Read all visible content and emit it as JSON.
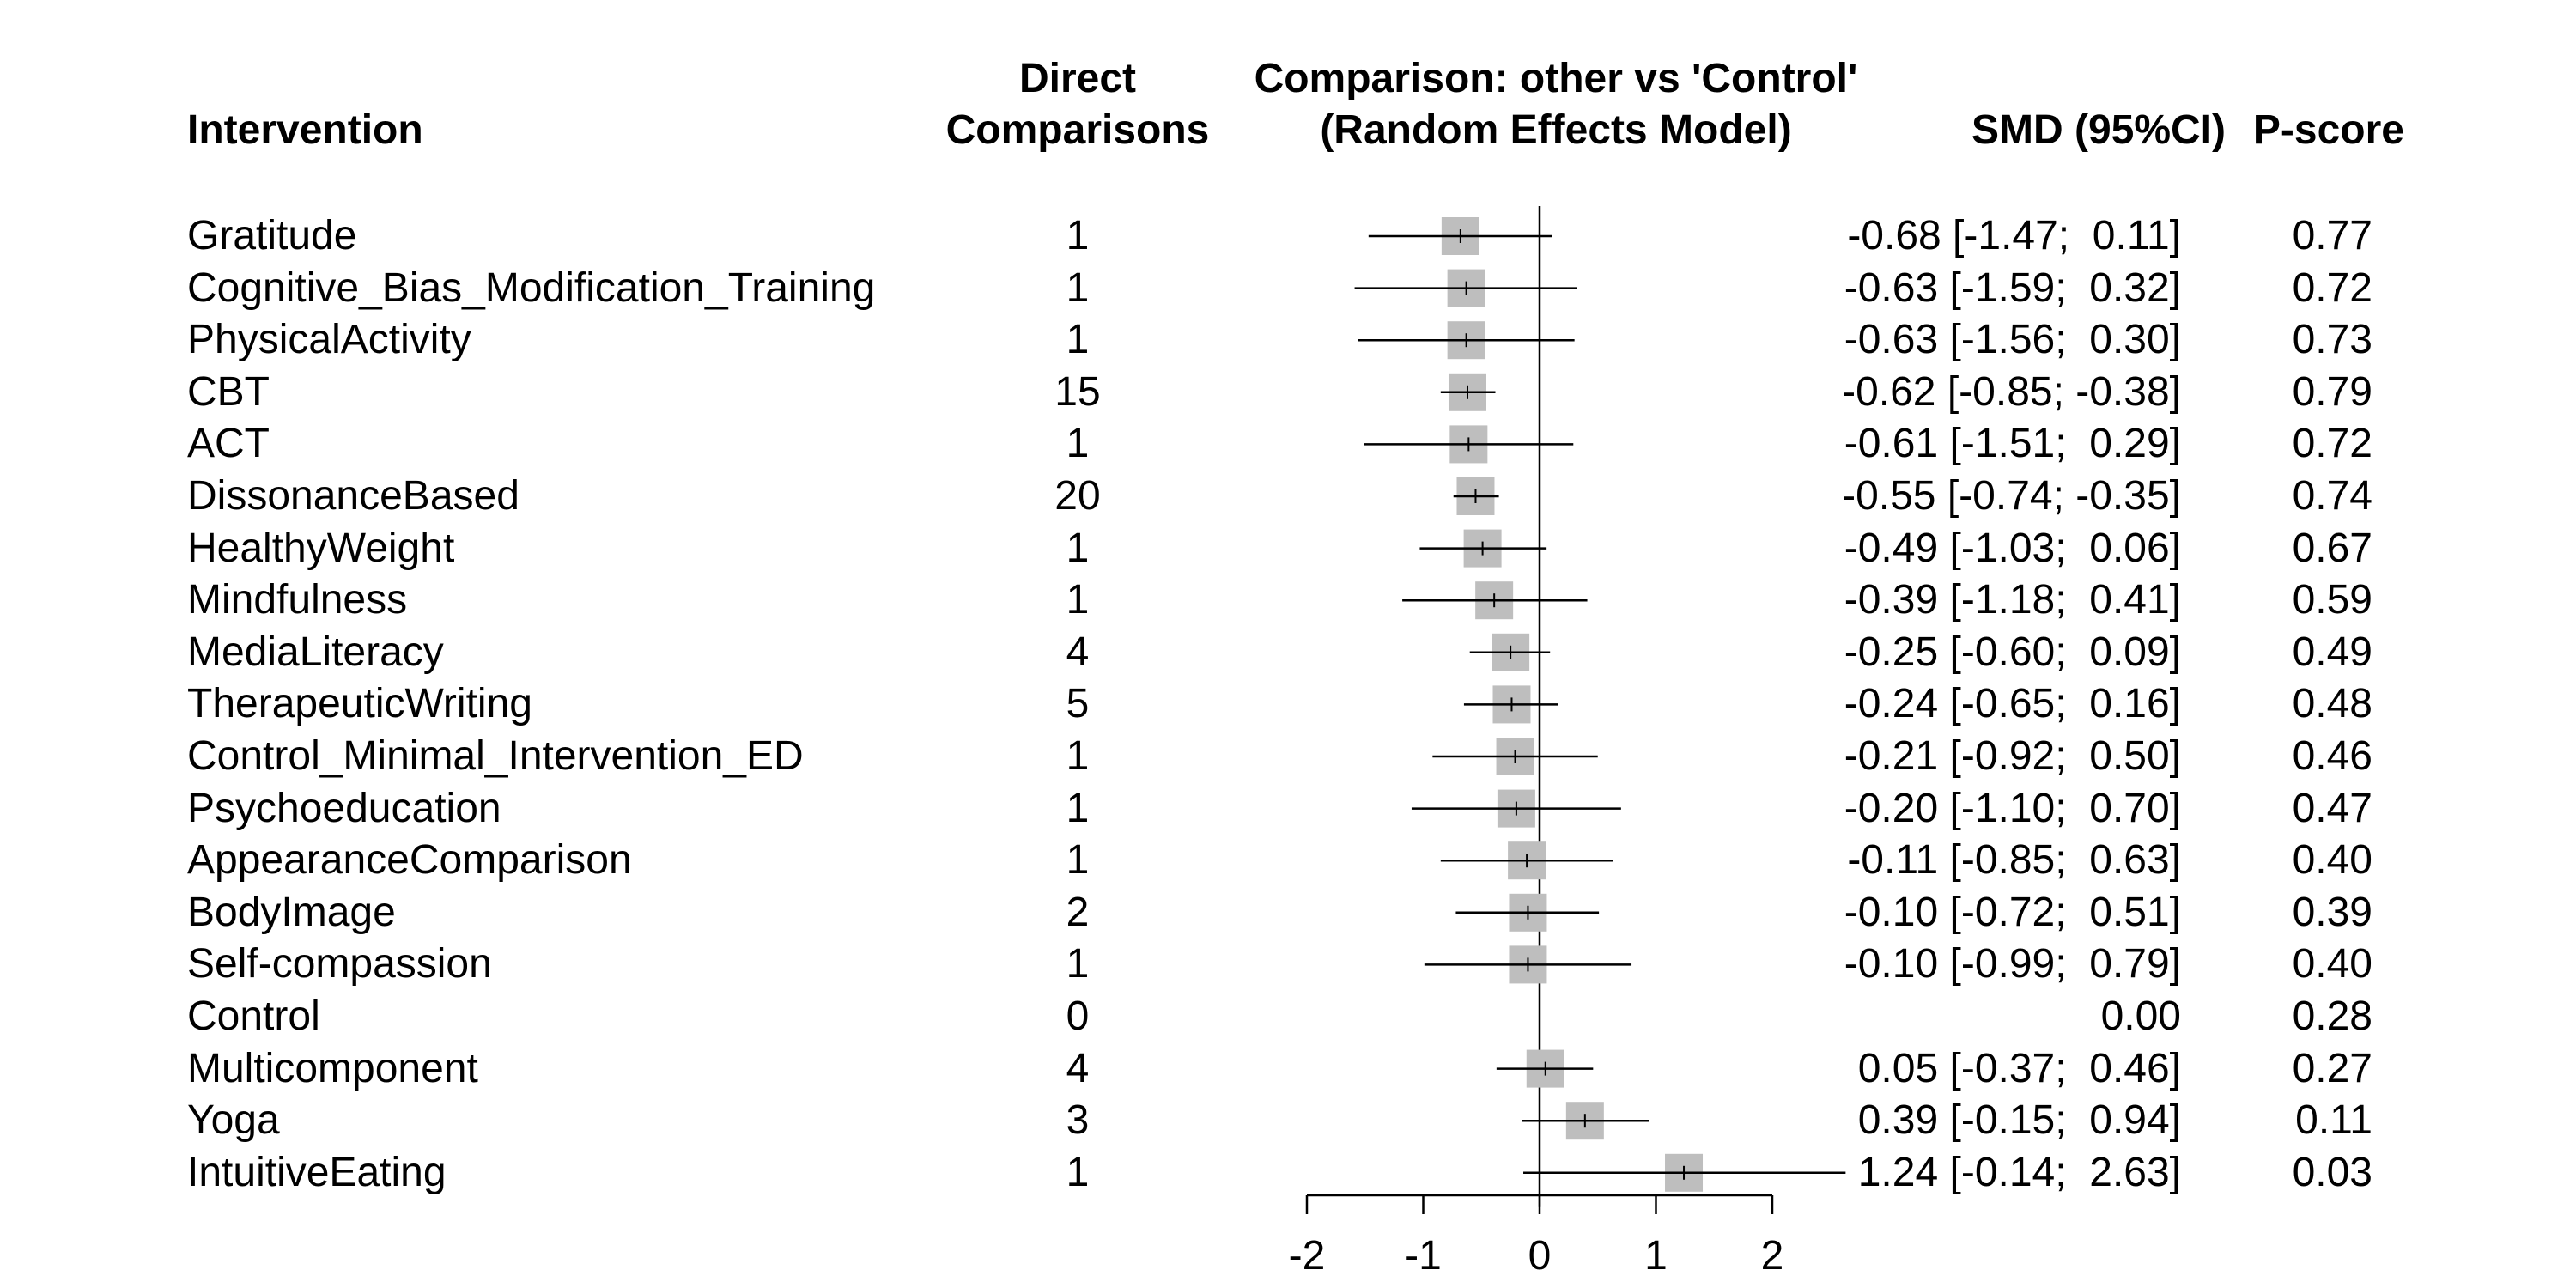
{
  "chart_data": {
    "type": "forest",
    "headers": {
      "intervention": "Intervention",
      "direct_line1": "Direct",
      "direct_line2": "Comparisons",
      "plot_line1": "Comparison: other vs 'Control'",
      "plot_line2": "(Random Effects Model)",
      "smd": "SMD (95%CI)",
      "pscore": "P-score"
    },
    "xlim": [
      -2,
      2
    ],
    "xticks": [
      "-2",
      "-1",
      "0",
      "1",
      "2"
    ],
    "reference_line": 0,
    "rows": [
      {
        "name": "Gratitude",
        "direct": "1",
        "smd": -0.68,
        "lower": -1.47,
        "upper": 0.11,
        "ci_text": "-0.68 [-1.47;  0.11]",
        "pscore": "0.77"
      },
      {
        "name": "Cognitive_Bias_Modification_Training",
        "direct": "1",
        "smd": -0.63,
        "lower": -1.59,
        "upper": 0.32,
        "ci_text": "-0.63 [-1.59;  0.32]",
        "pscore": "0.72"
      },
      {
        "name": "PhysicalActivity",
        "direct": "1",
        "smd": -0.63,
        "lower": -1.56,
        "upper": 0.3,
        "ci_text": "-0.63 [-1.56;  0.30]",
        "pscore": "0.73"
      },
      {
        "name": "CBT",
        "direct": "15",
        "smd": -0.62,
        "lower": -0.85,
        "upper": -0.38,
        "ci_text": "-0.62 [-0.85; -0.38]",
        "pscore": "0.79"
      },
      {
        "name": "ACT",
        "direct": "1",
        "smd": -0.61,
        "lower": -1.51,
        "upper": 0.29,
        "ci_text": "-0.61 [-1.51;  0.29]",
        "pscore": "0.72"
      },
      {
        "name": "DissonanceBased",
        "direct": "20",
        "smd": -0.55,
        "lower": -0.74,
        "upper": -0.35,
        "ci_text": "-0.55 [-0.74; -0.35]",
        "pscore": "0.74"
      },
      {
        "name": "HealthyWeight",
        "direct": "1",
        "smd": -0.49,
        "lower": -1.03,
        "upper": 0.06,
        "ci_text": "-0.49 [-1.03;  0.06]",
        "pscore": "0.67"
      },
      {
        "name": "Mindfulness",
        "direct": "1",
        "smd": -0.39,
        "lower": -1.18,
        "upper": 0.41,
        "ci_text": "-0.39 [-1.18;  0.41]",
        "pscore": "0.59"
      },
      {
        "name": "MediaLiteracy",
        "direct": "4",
        "smd": -0.25,
        "lower": -0.6,
        "upper": 0.09,
        "ci_text": "-0.25 [-0.60;  0.09]",
        "pscore": "0.49"
      },
      {
        "name": "TherapeuticWriting",
        "direct": "5",
        "smd": -0.24,
        "lower": -0.65,
        "upper": 0.16,
        "ci_text": "-0.24 [-0.65;  0.16]",
        "pscore": "0.48"
      },
      {
        "name": "Control_Minimal_Intervention_ED",
        "direct": "1",
        "smd": -0.21,
        "lower": -0.92,
        "upper": 0.5,
        "ci_text": "-0.21 [-0.92;  0.50]",
        "pscore": "0.46"
      },
      {
        "name": "Psychoeducation",
        "direct": "1",
        "smd": -0.2,
        "lower": -1.1,
        "upper": 0.7,
        "ci_text": "-0.20 [-1.10;  0.70]",
        "pscore": "0.47"
      },
      {
        "name": "AppearanceComparison",
        "direct": "1",
        "smd": -0.11,
        "lower": -0.85,
        "upper": 0.63,
        "ci_text": "-0.11 [-0.85;  0.63]",
        "pscore": "0.40"
      },
      {
        "name": "BodyImage",
        "direct": "2",
        "smd": -0.1,
        "lower": -0.72,
        "upper": 0.51,
        "ci_text": "-0.10 [-0.72;  0.51]",
        "pscore": "0.39"
      },
      {
        "name": "Self-compassion",
        "direct": "1",
        "smd": -0.1,
        "lower": -0.99,
        "upper": 0.79,
        "ci_text": "-0.10 [-0.99;  0.79]",
        "pscore": "0.40"
      },
      {
        "name": "Control",
        "direct": "0",
        "smd": null,
        "lower": null,
        "upper": null,
        "ci_text": "0.00",
        "pscore": "0.28"
      },
      {
        "name": "Multicomponent",
        "direct": "4",
        "smd": 0.05,
        "lower": -0.37,
        "upper": 0.46,
        "ci_text": "0.05 [-0.37;  0.46]",
        "pscore": "0.27"
      },
      {
        "name": "Yoga",
        "direct": "3",
        "smd": 0.39,
        "lower": -0.15,
        "upper": 0.94,
        "ci_text": "0.39 [-0.15;  0.94]",
        "pscore": "0.11"
      },
      {
        "name": "IntuitiveEating",
        "direct": "1",
        "smd": 1.24,
        "lower": -0.14,
        "upper": 2.63,
        "ci_text": "1.24 [-0.14;  2.63]",
        "pscore": "0.03"
      }
    ],
    "colors": {
      "square": "#bebebe",
      "line": "#000000",
      "text": "#000000"
    }
  }
}
